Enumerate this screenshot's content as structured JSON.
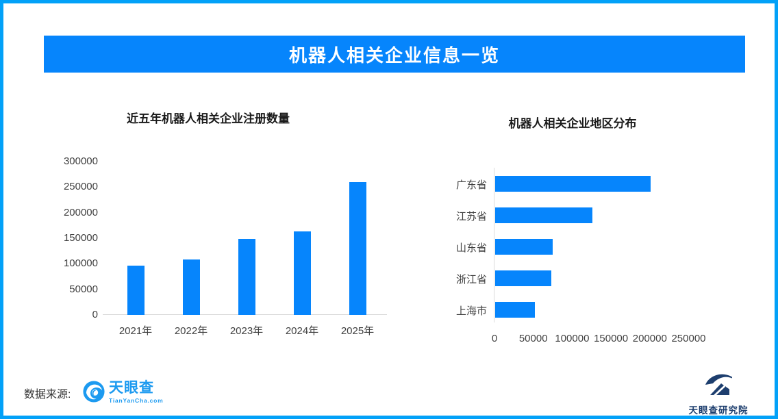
{
  "banner": {
    "title": "机器人相关企业信息一览",
    "bg_color": "#0685fc",
    "text_color": "#ffffff"
  },
  "chart_data": [
    {
      "type": "bar",
      "orientation": "vertical",
      "title": "近五年机器人相关企业注册数量",
      "categories": [
        "2021年",
        "2022年",
        "2023年",
        "2024年",
        "2025年"
      ],
      "values": [
        96000,
        108000,
        148000,
        164000,
        260000
      ],
      "ylabel": "",
      "xlabel": "",
      "ylim": [
        0,
        300000
      ],
      "yticks": [
        0,
        50000,
        100000,
        150000,
        200000,
        250000,
        300000
      ],
      "grid": false,
      "legend": "none",
      "bar_color": "#0685fc"
    },
    {
      "type": "bar",
      "orientation": "horizontal",
      "title": "机器人相关企业地区分布",
      "categories": [
        "广东省",
        "江苏省",
        "山东省",
        "浙江省",
        "上海市"
      ],
      "values": [
        200000,
        125000,
        74000,
        72000,
        51000
      ],
      "ylabel": "",
      "xlabel": "",
      "xlim": [
        0,
        250000
      ],
      "xticks": [
        0,
        50000,
        100000,
        150000,
        200000,
        250000
      ],
      "grid": false,
      "legend": "none",
      "bar_color": "#0685fc"
    }
  ],
  "footer": {
    "source_label": "数据来源:",
    "tianyancha": {
      "name": "天眼查",
      "subtext": "TianYanCha.com",
      "color": "#1c9af0"
    },
    "research": {
      "name": "天眼查研究院",
      "color": "#1d3e6e"
    }
  },
  "colors": {
    "border": "#02a1f8",
    "accent": "#0685fc",
    "axis_line": "#d9d9d9",
    "tick_text": "#404040",
    "title_text": "#1a1a1a"
  }
}
